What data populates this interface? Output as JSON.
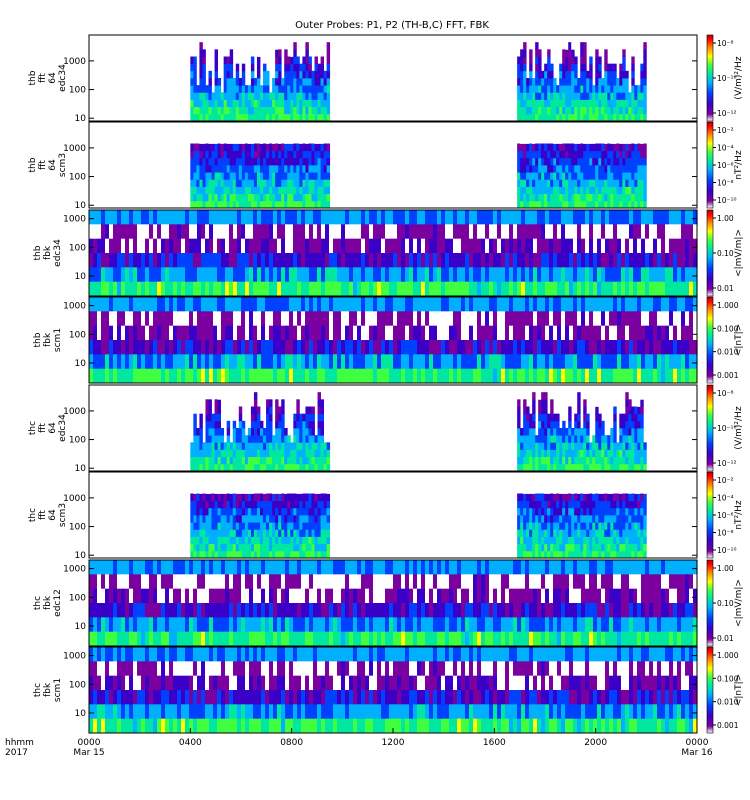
{
  "chart_data": {
    "type": "heatmap",
    "title": "Outer Probes: P1, P2 (TH-B,C) FFT, FBK",
    "x_axis": {
      "header_lines": [
        "hhmm",
        "2017"
      ],
      "ticks": [
        {
          "hour": 0,
          "label": "0000",
          "sublabel": "Mar 15"
        },
        {
          "hour": 4,
          "label": "0400",
          "sublabel": ""
        },
        {
          "hour": 8,
          "label": "0800",
          "sublabel": ""
        },
        {
          "hour": 12,
          "label": "1200",
          "sublabel": ""
        },
        {
          "hour": 16,
          "label": "1600",
          "sublabel": ""
        },
        {
          "hour": 20,
          "label": "2000",
          "sublabel": ""
        },
        {
          "hour": 24,
          "label": "0000",
          "sublabel": "Mar 16"
        }
      ],
      "range_hours": [
        0,
        24
      ]
    },
    "colorbar_colors": [
      "#ffffff",
      "#7b00a0",
      "#3a00c8",
      "#0040ff",
      "#00b0ff",
      "#00e8a0",
      "#40ff40",
      "#ffff00",
      "#ff8000",
      "#ff0000",
      "#c00000"
    ],
    "panels": [
      {
        "probe": "thb",
        "instrument": "fft",
        "detail": "64",
        "sensor": "edc34",
        "kind": "fft",
        "y_scale": "log",
        "y_ticks": [
          "1000",
          "100",
          "10"
        ],
        "y_range": [
          8,
          8000
        ],
        "active_hours": [
          [
            4.0,
            9.5
          ],
          [
            16.9,
            22.0
          ]
        ],
        "colorbar_ticks": [
          "10⁻⁸",
          "10⁻¹⁰",
          "10⁻¹²"
        ],
        "colorbar_label": "(V/m)²/Hz"
      },
      {
        "probe": "thb",
        "instrument": "fft",
        "detail": "64",
        "sensor": "scm3",
        "kind": "fft",
        "y_scale": "log",
        "y_ticks": [
          "1000",
          "100",
          "10"
        ],
        "y_range": [
          8,
          8000
        ],
        "active_hours": [
          [
            4.0,
            9.5
          ],
          [
            16.9,
            22.0
          ]
        ],
        "colorbar_ticks": [
          "10⁻²",
          "10⁻⁴",
          "10⁻⁶",
          "10⁻⁸",
          "10⁻¹⁰"
        ],
        "colorbar_label": "nT²/Hz"
      },
      {
        "probe": "thb",
        "instrument": "fbk",
        "detail": "",
        "sensor": "edc34",
        "kind": "fbk",
        "y_scale": "log",
        "y_ticks": [
          "1000",
          "100",
          "10"
        ],
        "y_range": [
          2,
          2000
        ],
        "colorbar_ticks": [
          "1.00",
          "0.10",
          "0.01"
        ],
        "colorbar_label": "<|mV/m|>"
      },
      {
        "probe": "thb",
        "instrument": "fbk",
        "detail": "",
        "sensor": "scm1",
        "kind": "fbk",
        "y_scale": "log",
        "y_ticks": [
          "1000",
          "100",
          "10"
        ],
        "y_range": [
          2,
          2000
        ],
        "colorbar_ticks": [
          "1.000",
          "0.100",
          "0.010",
          "0.001"
        ],
        "colorbar_label": "<|nT|>"
      },
      {
        "probe": "thc",
        "instrument": "fft",
        "detail": "64",
        "sensor": "edc34",
        "kind": "fft",
        "y_scale": "log",
        "y_ticks": [
          "1000",
          "100",
          "10"
        ],
        "y_range": [
          8,
          8000
        ],
        "active_hours": [
          [
            4.0,
            9.5
          ],
          [
            16.9,
            22.0
          ]
        ],
        "colorbar_ticks": [
          "10⁻⁸",
          "10⁻¹⁰",
          "10⁻¹²"
        ],
        "colorbar_label": "(V/m)²/Hz"
      },
      {
        "probe": "thc",
        "instrument": "fft",
        "detail": "64",
        "sensor": "scm3",
        "kind": "fft",
        "y_scale": "log",
        "y_ticks": [
          "1000",
          "100",
          "10"
        ],
        "y_range": [
          8,
          8000
        ],
        "active_hours": [
          [
            4.0,
            9.5
          ],
          [
            16.9,
            22.0
          ]
        ],
        "colorbar_ticks": [
          "10⁻²",
          "10⁻⁴",
          "10⁻⁶",
          "10⁻⁸",
          "10⁻¹⁰"
        ],
        "colorbar_label": "nT²/Hz"
      },
      {
        "probe": "thc",
        "instrument": "fbk",
        "detail": "",
        "sensor": "edc12",
        "kind": "fbk",
        "y_scale": "log",
        "y_ticks": [
          "1000",
          "100",
          "10"
        ],
        "y_range": [
          2,
          2000
        ],
        "colorbar_ticks": [
          "1.00",
          "0.10",
          "0.01"
        ],
        "colorbar_label": "<|mV/m|>"
      },
      {
        "probe": "thc",
        "instrument": "fbk",
        "detail": "",
        "sensor": "scm1",
        "kind": "fbk",
        "y_scale": "log",
        "y_ticks": [
          "1000",
          "100",
          "10"
        ],
        "y_range": [
          2,
          2000
        ],
        "colorbar_ticks": [
          "1.000",
          "0.100",
          "0.010",
          "0.001"
        ],
        "colorbar_label": "<|nT|>"
      }
    ]
  }
}
